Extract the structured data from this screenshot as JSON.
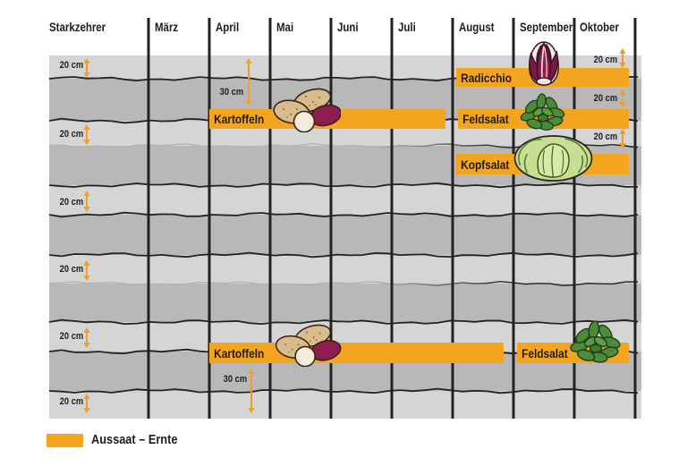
{
  "header": {
    "title": "Starkzehrer",
    "months": [
      "März",
      "April",
      "Mai",
      "Juni",
      "Juli",
      "August",
      "September",
      "Oktober"
    ]
  },
  "depth": {
    "layer_label": "20 cm",
    "potato_depth_label": "30 cm"
  },
  "legend": {
    "label": "Aussaat – Ernte"
  },
  "colors": {
    "accent_orange": "#F5A41E",
    "arrow_orange": "#F09E28",
    "soil_light": "#D5D5D5",
    "soil_dark": "#B8B8B8",
    "line_black": "#22221F"
  },
  "illustrations": [
    "potatoes-icon",
    "radicchio-icon",
    "feldsalat-icon",
    "kopfsalat-icon"
  ],
  "chart_data": {
    "type": "bar",
    "variant": "gantt-planting-calendar",
    "title": "Starkzehrer",
    "x_axis": {
      "unit": "month",
      "labels": [
        "März",
        "April",
        "Mai",
        "Juni",
        "Juli",
        "August",
        "September",
        "Oktober"
      ]
    },
    "y_axis": {
      "unit": "soil-depth-layers",
      "layer_label": "20 cm",
      "layer_count": 6
    },
    "rows": [
      {
        "crop": "Radicchio",
        "period": {
          "from": "August",
          "to": "Oktober"
        },
        "depth_note": "20 cm"
      },
      {
        "crop": "Kartoffeln",
        "period": {
          "from": "April",
          "to": "Juli"
        },
        "depth_note": "30 cm"
      },
      {
        "crop": "Feldsalat",
        "period": {
          "from": "August",
          "to": "Oktober"
        },
        "depth_note": "20 cm"
      },
      {
        "crop": "Kopfsalat",
        "period": {
          "from": "August",
          "to": "Oktober"
        },
        "depth_note": "20 cm"
      },
      {
        "crop": "Kartoffeln",
        "period": {
          "from": "April",
          "to": "August"
        },
        "depth_note": "30 cm"
      },
      {
        "crop": "Feldsalat",
        "period": {
          "from": "September",
          "to": "Oktober"
        },
        "depth_note": "20 cm"
      }
    ],
    "legend": [
      {
        "label": "Aussaat – Ernte",
        "color": "#F5A41E"
      }
    ],
    "grid": "monthly vertical lines",
    "legend_position": "bottom-left"
  }
}
